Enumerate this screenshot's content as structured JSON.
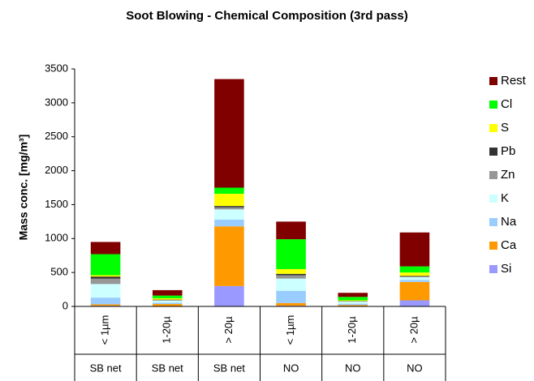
{
  "chart_data": {
    "type": "stacked-bar",
    "title": "Soot Blowing - Chemical Composition (3rd pass)",
    "y_label": "Mass conc. [mg/m³]",
    "categories": [
      "< 1µm",
      "1-20µ",
      "> 20µ",
      "< 1µm",
      "1-20µ",
      "> 20µ"
    ],
    "groups": [
      "SB net",
      "SB net",
      "SB net",
      "NO",
      "NO",
      "NO"
    ],
    "ylim": [
      0,
      3500
    ],
    "yticks": [
      0,
      500,
      1000,
      1500,
      2000,
      2500,
      3000,
      3500
    ],
    "legend": "right",
    "series": [
      {
        "name": "Si",
        "color": "#9999ff",
        "values": [
          10,
          5,
          300,
          10,
          5,
          90
        ]
      },
      {
        "name": "Ca",
        "color": "#ff9900",
        "values": [
          20,
          30,
          880,
          40,
          15,
          270
        ]
      },
      {
        "name": "Na",
        "color": "#99ccff",
        "values": [
          100,
          20,
          100,
          180,
          20,
          30
        ]
      },
      {
        "name": "K",
        "color": "#ccffff",
        "values": [
          200,
          30,
          150,
          180,
          30,
          40
        ]
      },
      {
        "name": "Zn",
        "color": "#969696",
        "values": [
          80,
          10,
          30,
          50,
          5,
          10
        ]
      },
      {
        "name": "Pb",
        "color": "#333333",
        "values": [
          30,
          5,
          20,
          20,
          5,
          10
        ]
      },
      {
        "name": "S",
        "color": "#ffff00",
        "values": [
          20,
          20,
          180,
          70,
          10,
          50
        ]
      },
      {
        "name": "Cl",
        "color": "#00ff00",
        "values": [
          310,
          40,
          90,
          440,
          50,
          90
        ]
      },
      {
        "name": "Rest",
        "color": "#800000",
        "values": [
          180,
          80,
          1600,
          260,
          60,
          500
        ]
      }
    ]
  }
}
